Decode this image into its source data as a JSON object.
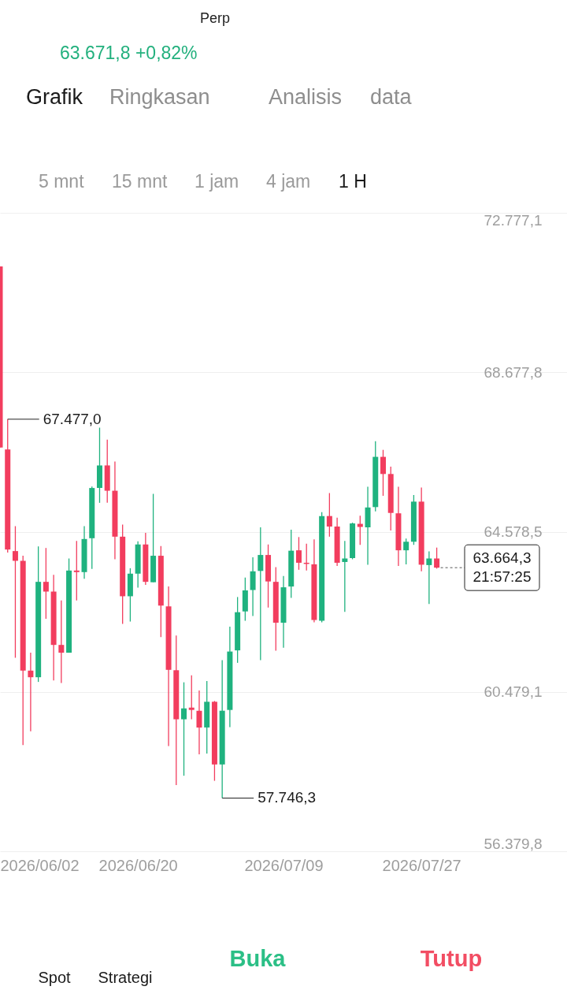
{
  "chart_data": {
    "type": "candlestick",
    "subtitle": "63.671,8 +0,82%",
    "x": [
      "2026-06-02",
      "2026-06-03",
      "2026-06-04",
      "2026-06-05",
      "2026-06-06",
      "2026-06-07",
      "2026-06-08",
      "2026-06-09",
      "2026-06-10",
      "2026-06-11",
      "2026-06-12",
      "2026-06-13",
      "2026-06-14",
      "2026-06-15",
      "2026-06-16",
      "2026-06-17",
      "2026-06-18",
      "2026-06-19",
      "2026-06-20",
      "2026-06-21",
      "2026-06-22",
      "2026-06-23",
      "2026-06-24",
      "2026-06-25",
      "2026-06-26",
      "2026-06-27",
      "2026-06-28",
      "2026-06-29",
      "2026-06-30",
      "2026-07-01",
      "2026-07-02",
      "2026-07-03",
      "2026-07-04",
      "2026-07-05",
      "2026-07-06",
      "2026-07-07",
      "2026-07-08",
      "2026-07-09",
      "2026-07-10",
      "2026-07-11",
      "2026-07-12",
      "2026-07-13",
      "2026-07-14",
      "2026-07-15",
      "2026-07-16",
      "2026-07-17",
      "2026-07-18",
      "2026-07-19",
      "2026-07-20",
      "2026-07-21",
      "2026-07-22",
      "2026-07-23",
      "2026-07-24",
      "2026-07-25",
      "2026-07-26",
      "2026-07-27",
      "2026-07-28",
      "2026-07-29"
    ],
    "ohlc": [
      [
        71400,
        71400,
        66750,
        66750
      ],
      [
        66700,
        67477.0,
        64050,
        64130
      ],
      [
        64090,
        64730,
        61350,
        63840
      ],
      [
        63840,
        63970,
        59110,
        61020
      ],
      [
        61020,
        61480,
        59460,
        60850
      ],
      [
        60850,
        64210,
        60730,
        63300
      ],
      [
        63300,
        64170,
        62350,
        63050
      ],
      [
        63050,
        63480,
        60770,
        61680
      ],
      [
        61680,
        62820,
        60700,
        61480
      ],
      [
        61480,
        63900,
        61480,
        63590
      ],
      [
        63590,
        64350,
        62820,
        63550
      ],
      [
        63550,
        64730,
        63380,
        64400
      ],
      [
        64420,
        65750,
        63630,
        65710
      ],
      [
        65710,
        67260,
        65330,
        66290
      ],
      [
        66290,
        66950,
        65330,
        65640
      ],
      [
        65640,
        66390,
        63880,
        64460
      ],
      [
        64460,
        64770,
        62220,
        62930
      ],
      [
        62930,
        63650,
        62280,
        63510
      ],
      [
        63510,
        64340,
        63150,
        64260
      ],
      [
        64260,
        64560,
        63220,
        63300
      ],
      [
        63290,
        65560,
        63290,
        63970
      ],
      [
        63970,
        64220,
        61880,
        62690
      ],
      [
        62670,
        63180,
        59080,
        61040
      ],
      [
        61030,
        61920,
        58080,
        59770
      ],
      [
        59770,
        60720,
        58320,
        60050
      ],
      [
        60070,
        60900,
        59770,
        60010
      ],
      [
        59990,
        60510,
        58870,
        59560
      ],
      [
        59560,
        60750,
        58890,
        60220
      ],
      [
        60220,
        60240,
        58190,
        58610
      ],
      [
        58610,
        61290,
        57746.3,
        59990
      ],
      [
        60010,
        62150,
        59570,
        61510
      ],
      [
        61540,
        62910,
        61220,
        62520
      ],
      [
        62540,
        63410,
        62300,
        63080
      ],
      [
        63090,
        63930,
        62420,
        63570
      ],
      [
        63580,
        64700,
        61290,
        63990
      ],
      [
        63990,
        64260,
        62640,
        63310
      ],
      [
        63300,
        63680,
        61530,
        62250
      ],
      [
        62250,
        63450,
        61610,
        63160
      ],
      [
        63180,
        64640,
        62890,
        64100
      ],
      [
        64110,
        64450,
        63610,
        63790
      ],
      [
        63790,
        64280,
        63590,
        63760
      ],
      [
        63750,
        64390,
        62260,
        62320
      ],
      [
        62300,
        65090,
        62260,
        64990
      ],
      [
        64990,
        65580,
        64460,
        64720
      ],
      [
        64720,
        64950,
        63710,
        63790
      ],
      [
        63810,
        64350,
        62530,
        63900
      ],
      [
        63910,
        64820,
        63880,
        64800
      ],
      [
        64790,
        65000,
        64250,
        64710
      ],
      [
        64700,
        65740,
        63740,
        65210
      ],
      [
        65220,
        66910,
        65110,
        66510
      ],
      [
        66510,
        66690,
        65510,
        66070
      ],
      [
        66070,
        66260,
        64620,
        65070
      ],
      [
        65060,
        65740,
        63710,
        64110
      ],
      [
        64110,
        64410,
        63750,
        64330
      ],
      [
        64330,
        65530,
        64250,
        65360
      ],
      [
        65360,
        65720,
        63570,
        63740
      ],
      [
        63730,
        64080,
        62730,
        63900
      ],
      [
        63900,
        64180,
        63640,
        63664.3
      ]
    ],
    "colors": [
      "#f23d5e",
      "#f23d5e",
      "#f23d5e",
      "#f23d5e",
      "#f23d5e",
      "#1fb27f",
      "#f23d5e",
      "#f23d5e",
      "#f23d5e",
      "#1fb27f",
      "#f23d5e",
      "#1fb27f",
      "#1fb27f",
      "#1fb27f",
      "#f23d5e",
      "#f23d5e",
      "#f23d5e",
      "#1fb27f",
      "#1fb27f",
      "#f23d5e",
      "#1fb27f",
      "#f23d5e",
      "#f23d5e",
      "#f23d5e",
      "#1fb27f",
      "#f23d5e",
      "#f23d5e",
      "#1fb27f",
      "#f23d5e",
      "#1fb27f",
      "#1fb27f",
      "#1fb27f",
      "#1fb27f",
      "#1fb27f",
      "#1fb27f",
      "#f23d5e",
      "#f23d5e",
      "#1fb27f",
      "#1fb27f",
      "#f23d5e",
      "#f23d5e",
      "#f23d5e",
      "#1fb27f",
      "#f23d5e",
      "#f23d5e",
      "#1fb27f",
      "#1fb27f",
      "#f23d5e",
      "#1fb27f",
      "#1fb27f",
      "#f23d5e",
      "#f23d5e",
      "#f23d5e",
      "#1fb27f",
      "#1fb27f",
      "#f23d5e",
      "#1fb27f",
      "#f23d5e"
    ],
    "xlim": [
      "2026-06-02",
      "2026-08-15"
    ],
    "xticks": [
      {
        "value": "2026-06-02",
        "label": "2026/06/02"
      },
      {
        "value": "2026-06-20",
        "label": "2026/06/20"
      },
      {
        "value": "2026-07-09",
        "label": "2026/07/09"
      },
      {
        "value": "2026-07-27",
        "label": "2026/07/27"
      }
    ],
    "ylim": [
      56379.8,
      72777.1
    ],
    "yticks": [
      {
        "value": 56379.8,
        "label": "56.379,8"
      },
      {
        "value": 60479.1,
        "label": "60.479,1"
      },
      {
        "value": 64578.5,
        "label": "64.578,5"
      },
      {
        "value": 68677.8,
        "label": "68.677,8"
      },
      {
        "value": 72777.1,
        "label": "72.777,1"
      }
    ],
    "grid": "y",
    "annotations": [
      {
        "text": "67.477,0",
        "x": "2026-06-03",
        "y": 67477.0
      },
      {
        "text": "57.746,3",
        "x": "2026-07-01",
        "y": 57746.3
      },
      {
        "text": "63.664,3\n21:57:25",
        "x": "2026-07-29",
        "y": 63664.3
      },
      "Perp",
      "Grafik",
      "Ringkasan",
      "Analisis",
      "data",
      "5 mnt",
      "15 mnt",
      "1 jam",
      "4 jam",
      "1 H",
      "Spot",
      "Strategi",
      "Buka",
      "Tutup"
    ]
  }
}
